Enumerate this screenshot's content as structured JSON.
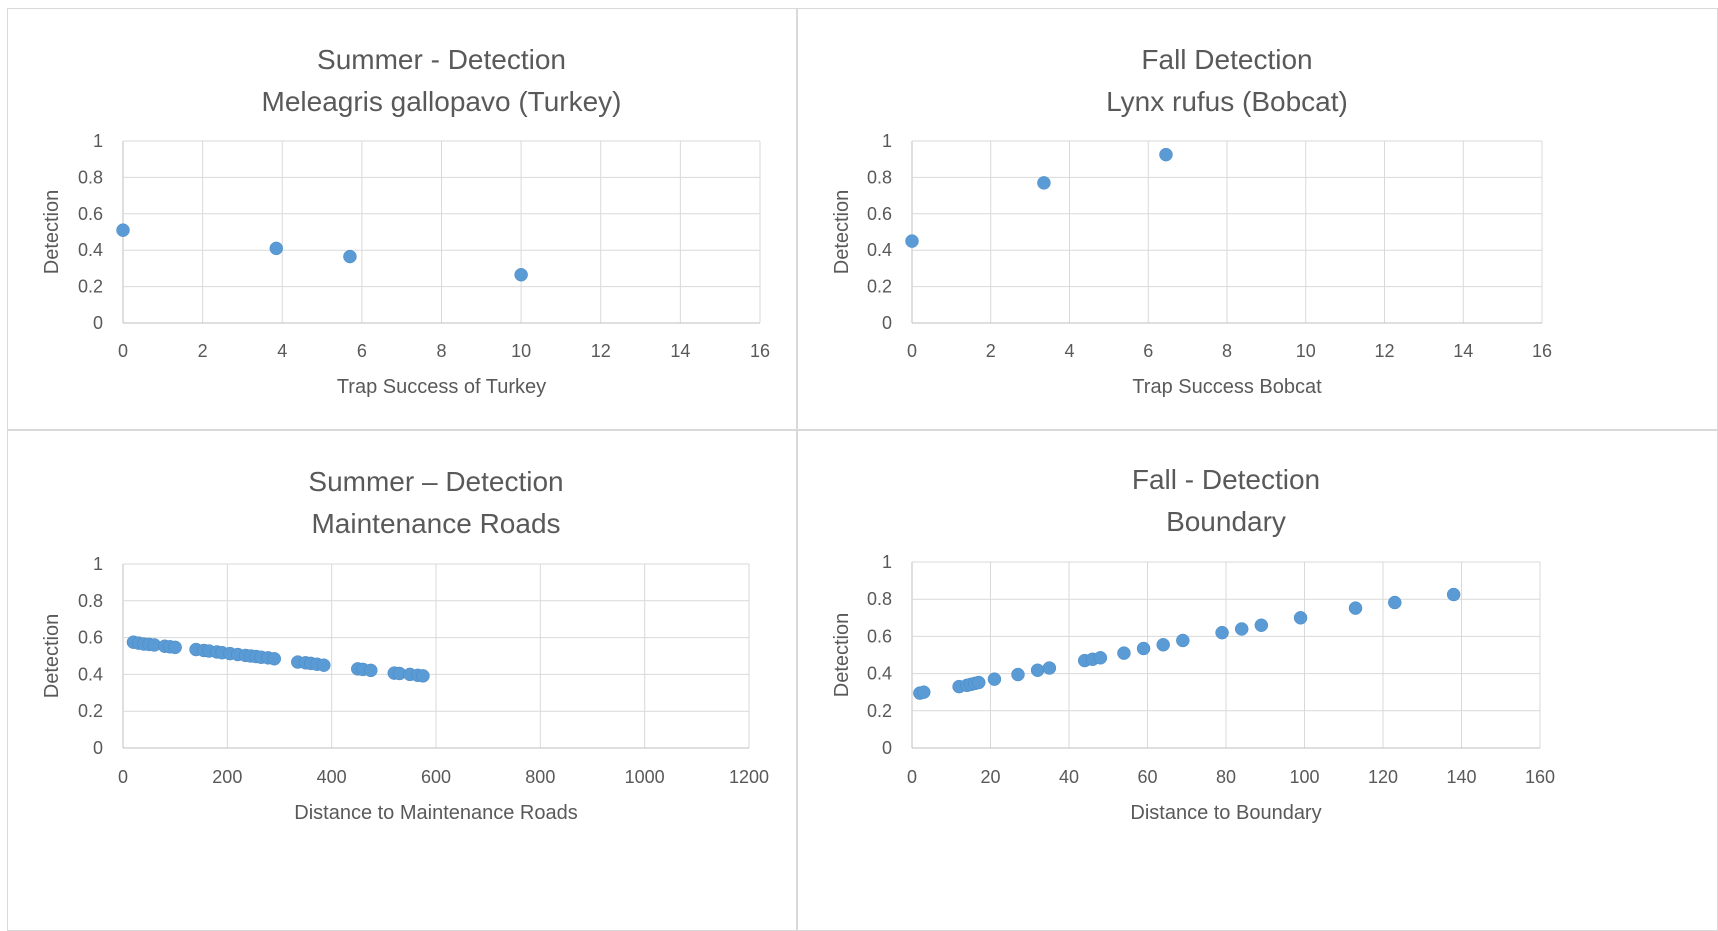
{
  "chart_data": [
    {
      "type": "scatter",
      "title": [
        "Summer - Detection",
        "Meleagris gallopavo (Turkey)"
      ],
      "xlabel": "Trap Success of Turkey",
      "ylabel": "Detection",
      "xlim": [
        0,
        16
      ],
      "ylim": [
        0,
        1
      ],
      "xticks": [
        "0",
        "2",
        "4",
        "6",
        "8",
        "10",
        "12",
        "14",
        "16"
      ],
      "yticks": [
        "0",
        "0.2",
        "0.4",
        "0.6",
        "0.8",
        "1"
      ],
      "grid": true,
      "color": "#5b9bd5",
      "points": [
        [
          0,
          0.51
        ],
        [
          3.85,
          0.41
        ],
        [
          5.7,
          0.365
        ],
        [
          10,
          0.265
        ]
      ]
    },
    {
      "type": "scatter",
      "title": [
        "Fall Detection",
        "Lynx rufus (Bobcat)"
      ],
      "xlabel": "Trap Success Bobcat",
      "ylabel": "Detection",
      "xlim": [
        0,
        16
      ],
      "ylim": [
        0,
        1
      ],
      "xticks": [
        "0",
        "2",
        "4",
        "6",
        "8",
        "10",
        "12",
        "14",
        "16"
      ],
      "yticks": [
        "0",
        "0.2",
        "0.4",
        "0.6",
        "0.8",
        "1"
      ],
      "grid": true,
      "color": "#5b9bd5",
      "points": [
        [
          0,
          0.45
        ],
        [
          3.35,
          0.77
        ],
        [
          6.45,
          0.925
        ]
      ]
    },
    {
      "type": "scatter",
      "title": [
        "Summer – Detection",
        "Maintenance Roads"
      ],
      "xlabel": "Distance to Maintenance Roads",
      "ylabel": "Detection",
      "xlim": [
        0,
        1200
      ],
      "ylim": [
        0,
        1
      ],
      "xticks": [
        "0",
        "200",
        "400",
        "600",
        "800",
        "1000",
        "1200"
      ],
      "yticks": [
        "0",
        "0.2",
        "0.4",
        "0.6",
        "0.8",
        "1"
      ],
      "grid": true,
      "color": "#5b9bd5",
      "points": [
        [
          20,
          0.575
        ],
        [
          30,
          0.57
        ],
        [
          40,
          0.565
        ],
        [
          50,
          0.563
        ],
        [
          60,
          0.56
        ],
        [
          80,
          0.553
        ],
        [
          90,
          0.55
        ],
        [
          100,
          0.547
        ],
        [
          140,
          0.535
        ],
        [
          155,
          0.53
        ],
        [
          165,
          0.527
        ],
        [
          180,
          0.522
        ],
        [
          190,
          0.518
        ],
        [
          205,
          0.513
        ],
        [
          220,
          0.508
        ],
        [
          235,
          0.503
        ],
        [
          245,
          0.5
        ],
        [
          255,
          0.497
        ],
        [
          265,
          0.493
        ],
        [
          278,
          0.49
        ],
        [
          290,
          0.485
        ],
        [
          335,
          0.467
        ],
        [
          350,
          0.463
        ],
        [
          360,
          0.46
        ],
        [
          372,
          0.455
        ],
        [
          385,
          0.45
        ],
        [
          450,
          0.43
        ],
        [
          460,
          0.427
        ],
        [
          475,
          0.422
        ],
        [
          520,
          0.407
        ],
        [
          530,
          0.405
        ],
        [
          550,
          0.4
        ],
        [
          565,
          0.395
        ],
        [
          575,
          0.392
        ]
      ]
    },
    {
      "type": "scatter",
      "title": [
        "Fall - Detection",
        "Boundary"
      ],
      "xlabel": "Distance to Boundary",
      "ylabel": "Detection",
      "xlim": [
        0,
        160
      ],
      "ylim": [
        0,
        1
      ],
      "xticks": [
        "0",
        "20",
        "40",
        "60",
        "80",
        "100",
        "120",
        "140",
        "160"
      ],
      "yticks": [
        "0",
        "0.2",
        "0.4",
        "0.6",
        "0.8",
        "1"
      ],
      "grid": true,
      "color": "#5b9bd5",
      "points": [
        [
          2,
          0.295
        ],
        [
          3,
          0.3
        ],
        [
          12,
          0.33
        ],
        [
          14,
          0.337
        ],
        [
          15,
          0.342
        ],
        [
          16,
          0.347
        ],
        [
          17,
          0.352
        ],
        [
          21,
          0.37
        ],
        [
          27,
          0.395
        ],
        [
          32,
          0.418
        ],
        [
          35,
          0.43
        ],
        [
          44,
          0.47
        ],
        [
          46,
          0.477
        ],
        [
          48,
          0.485
        ],
        [
          54,
          0.51
        ],
        [
          59,
          0.535
        ],
        [
          64,
          0.555
        ],
        [
          69,
          0.578
        ],
        [
          79,
          0.62
        ],
        [
          84,
          0.64
        ],
        [
          89,
          0.66
        ],
        [
          99,
          0.7
        ],
        [
          113,
          0.752
        ],
        [
          123,
          0.782
        ],
        [
          138,
          0.825
        ]
      ]
    }
  ]
}
